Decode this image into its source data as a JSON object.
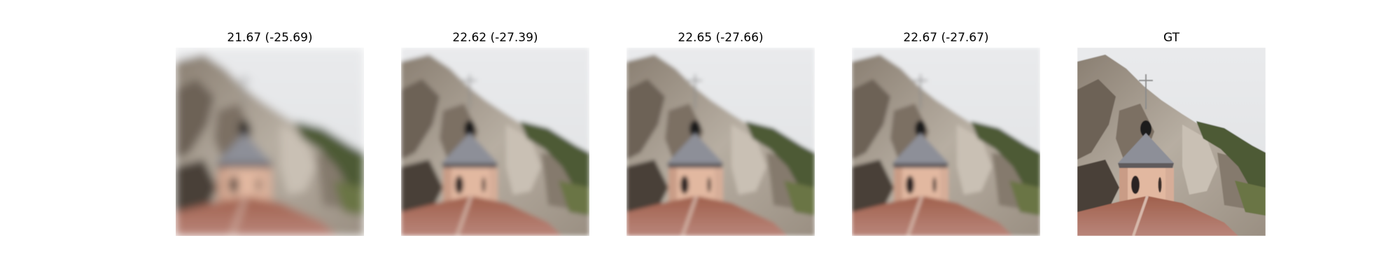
{
  "panels": [
    {
      "title": "21.67 (-25.69)"
    },
    {
      "title": "22.62 (-27.39)"
    },
    {
      "title": "22.65 (-27.66)"
    },
    {
      "title": "22.67 (-27.67)"
    },
    {
      "title": "GT"
    }
  ]
}
